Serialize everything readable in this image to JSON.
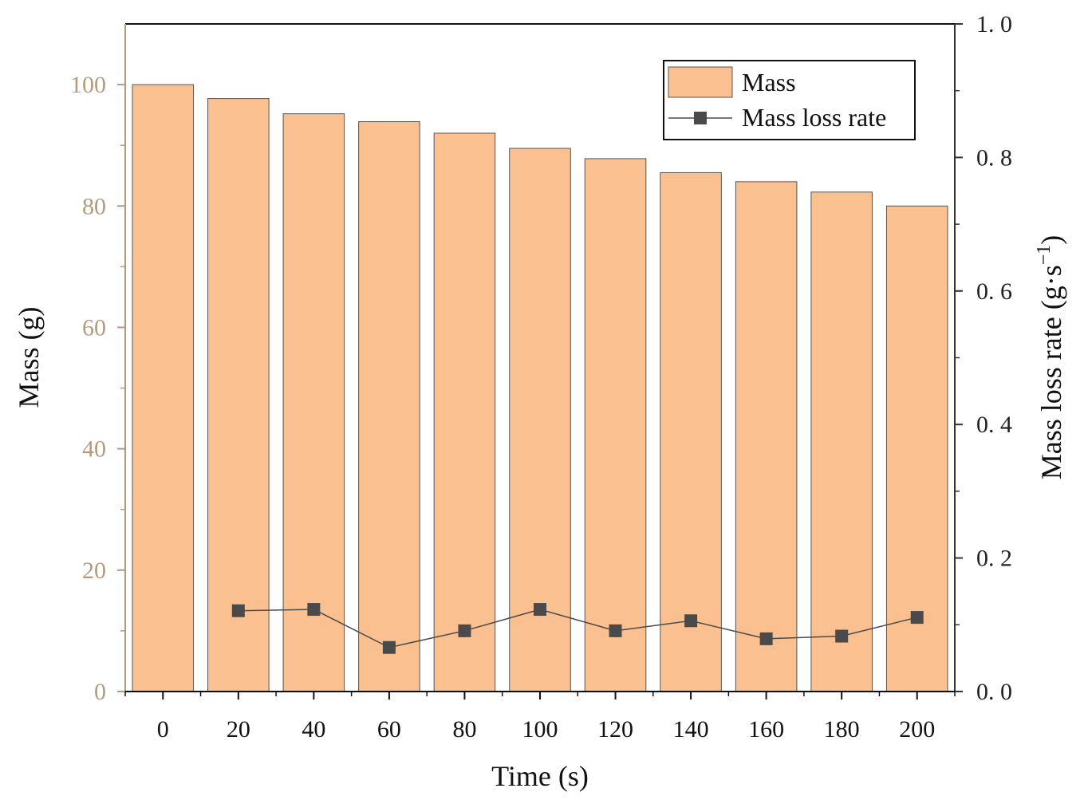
{
  "chart_data": {
    "type": "bar+line",
    "title": "",
    "x": [
      0,
      20,
      40,
      60,
      80,
      100,
      120,
      140,
      160,
      180,
      200
    ],
    "x_tick_labels": [
      "0",
      "20",
      "40",
      "60",
      "80",
      "100",
      "120",
      "140",
      "160",
      "180",
      "200"
    ],
    "xlabel": "Time (s)",
    "ylabel_left": "Mass (g)",
    "ylabel_right_main": "Mass loss rate (g·s",
    "ylabel_right_sup": "−1",
    "ylabel_right_close": ")",
    "ylim_left": [
      0,
      110
    ],
    "ylim_right": [
      0,
      1.0
    ],
    "yticks_left": [
      "0",
      "20",
      "40",
      "60",
      "80",
      "100"
    ],
    "yticks_left_values": [
      0,
      20,
      40,
      60,
      80,
      100
    ],
    "yticks_right": [
      "0. 0",
      "0. 2",
      "0. 4",
      "0. 6",
      "0. 8",
      "1. 0"
    ],
    "yticks_right_values": [
      0.0,
      0.2,
      0.4,
      0.6,
      0.8,
      1.0
    ],
    "series": [
      {
        "name": "Mass",
        "type": "bar",
        "axis": "left",
        "color": "#fac090",
        "values": [
          100,
          97.7,
          95.2,
          93.9,
          92.0,
          89.5,
          87.8,
          85.5,
          84.0,
          82.3,
          80.0
        ]
      },
      {
        "name": "Mass loss rate",
        "type": "line",
        "axis": "right",
        "color": "#4a4a4a",
        "x": [
          20,
          40,
          60,
          80,
          100,
          120,
          140,
          160,
          180,
          200
        ],
        "values": [
          0.121,
          0.123,
          0.066,
          0.091,
          0.123,
          0.091,
          0.106,
          0.079,
          0.083,
          0.111
        ]
      }
    ],
    "legend": {
      "position": "top-right",
      "entries": [
        "Mass",
        "Mass loss rate"
      ]
    }
  }
}
